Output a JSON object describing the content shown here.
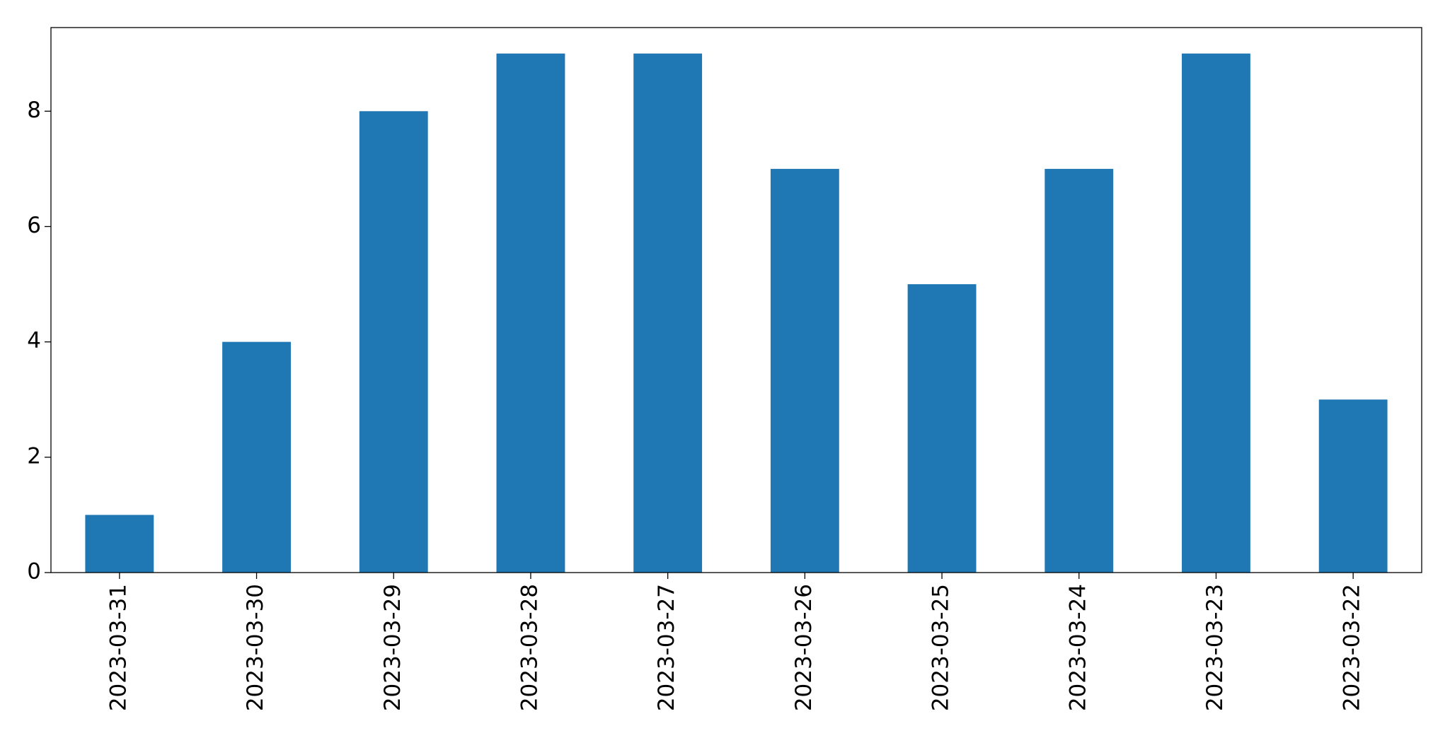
{
  "chart_data": {
    "type": "bar",
    "categories": [
      "2023-03-31",
      "2023-03-30",
      "2023-03-29",
      "2023-03-28",
      "2023-03-27",
      "2023-03-26",
      "2023-03-25",
      "2023-03-24",
      "2023-03-23",
      "2023-03-22"
    ],
    "values": [
      1,
      4,
      8,
      9,
      9,
      7,
      5,
      7,
      9,
      3
    ],
    "color": "#1f77b4",
    "ylim": [
      0,
      9.45
    ],
    "yticks": [
      0,
      2,
      4,
      6,
      8
    ],
    "grid": false
  }
}
